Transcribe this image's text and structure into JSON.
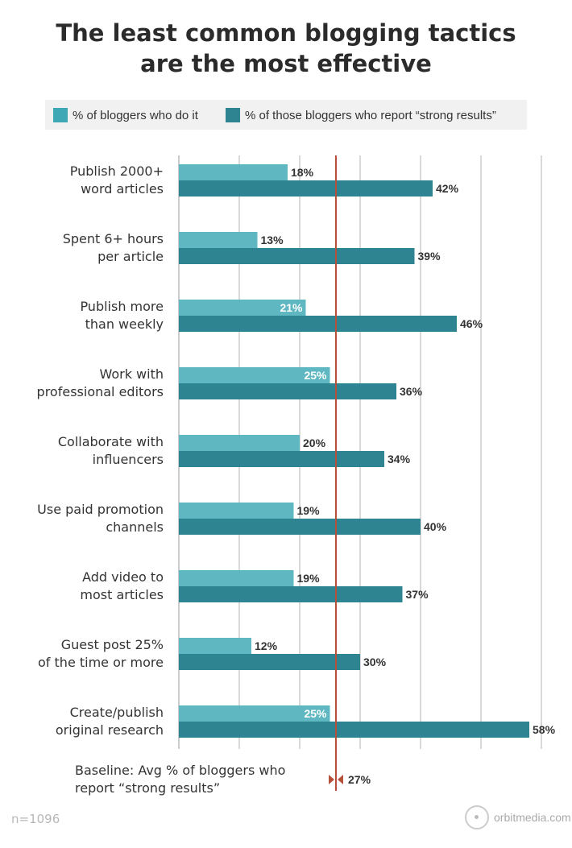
{
  "chart_data": {
    "type": "bar",
    "orientation": "horizontal",
    "title": "The least common blogging tactics are the most effective",
    "categories": [
      [
        "Publish 2000+",
        "word articles"
      ],
      [
        "Spent 6+ hours",
        "per article"
      ],
      [
        "Publish more",
        "than weekly"
      ],
      [
        "Work with",
        "professional editors"
      ],
      [
        "Collaborate with",
        "influencers"
      ],
      [
        "Use paid promotion",
        "channels"
      ],
      [
        "Add video to",
        "most articles"
      ],
      [
        "Guest post 25%",
        "of the time or more"
      ],
      [
        "Create/publish",
        "original research"
      ]
    ],
    "series": [
      {
        "name": "% of bloggers who do it",
        "color": "#5fb8c1",
        "values": [
          18,
          13,
          21,
          25,
          20,
          19,
          19,
          12,
          25
        ]
      },
      {
        "name": "% of those bloggers who report “strong results”",
        "color": "#2e8490",
        "values": [
          42,
          39,
          46,
          36,
          34,
          40,
          37,
          30,
          58
        ]
      }
    ],
    "xlim": [
      0,
      60
    ],
    "grid": true,
    "legend": "top",
    "baseline": {
      "label": "Baseline: Avg % of bloggers who report “strong results”",
      "lines": [
        "Baseline: Avg % of bloggers who",
        "report “strong results”"
      ],
      "value": 27,
      "value_label": "27%",
      "color": "#b5503a"
    }
  },
  "footer": {
    "n": "n=1096",
    "brand": "orbitmedia.com"
  }
}
